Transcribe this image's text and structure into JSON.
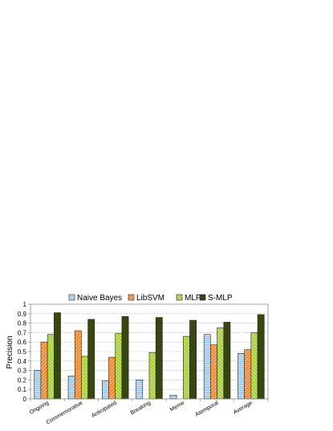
{
  "chart_data": {
    "type": "bar",
    "ylabel": "Precision",
    "ylim": [
      0,
      1
    ],
    "yticks": [
      "0",
      "0.1",
      "0.2",
      "0.3",
      "0.4",
      "0.5",
      "0.6",
      "0.7",
      "0.8",
      "0.9",
      "1"
    ],
    "grid": true,
    "legend_position": "top",
    "categories": [
      "Ongoing",
      "Commemorative",
      "Anticipated",
      "Breaking",
      "Meme",
      "Atemporal",
      "Average"
    ],
    "series": [
      {
        "name": "Naive Bayes",
        "color": "#87bfe6",
        "pattern": "horizontal-lines",
        "values": [
          0.3,
          0.24,
          0.19,
          0.2,
          0.04,
          0.68,
          0.48
        ]
      },
      {
        "name": "LibSVM",
        "color": "#f2882b",
        "pattern": "diagonal-lines",
        "values": [
          0.6,
          0.72,
          0.44,
          0.0,
          0.0,
          0.57,
          0.52
        ]
      },
      {
        "name": "MLP",
        "color": "#a8cf34",
        "pattern": "diagonal-lines",
        "values": [
          0.68,
          0.45,
          0.69,
          0.49,
          0.66,
          0.75,
          0.7
        ]
      },
      {
        "name": "S-MLP",
        "color": "#38460f",
        "pattern": "solid",
        "values": [
          0.91,
          0.84,
          0.87,
          0.86,
          0.83,
          0.81,
          0.89
        ]
      }
    ]
  }
}
